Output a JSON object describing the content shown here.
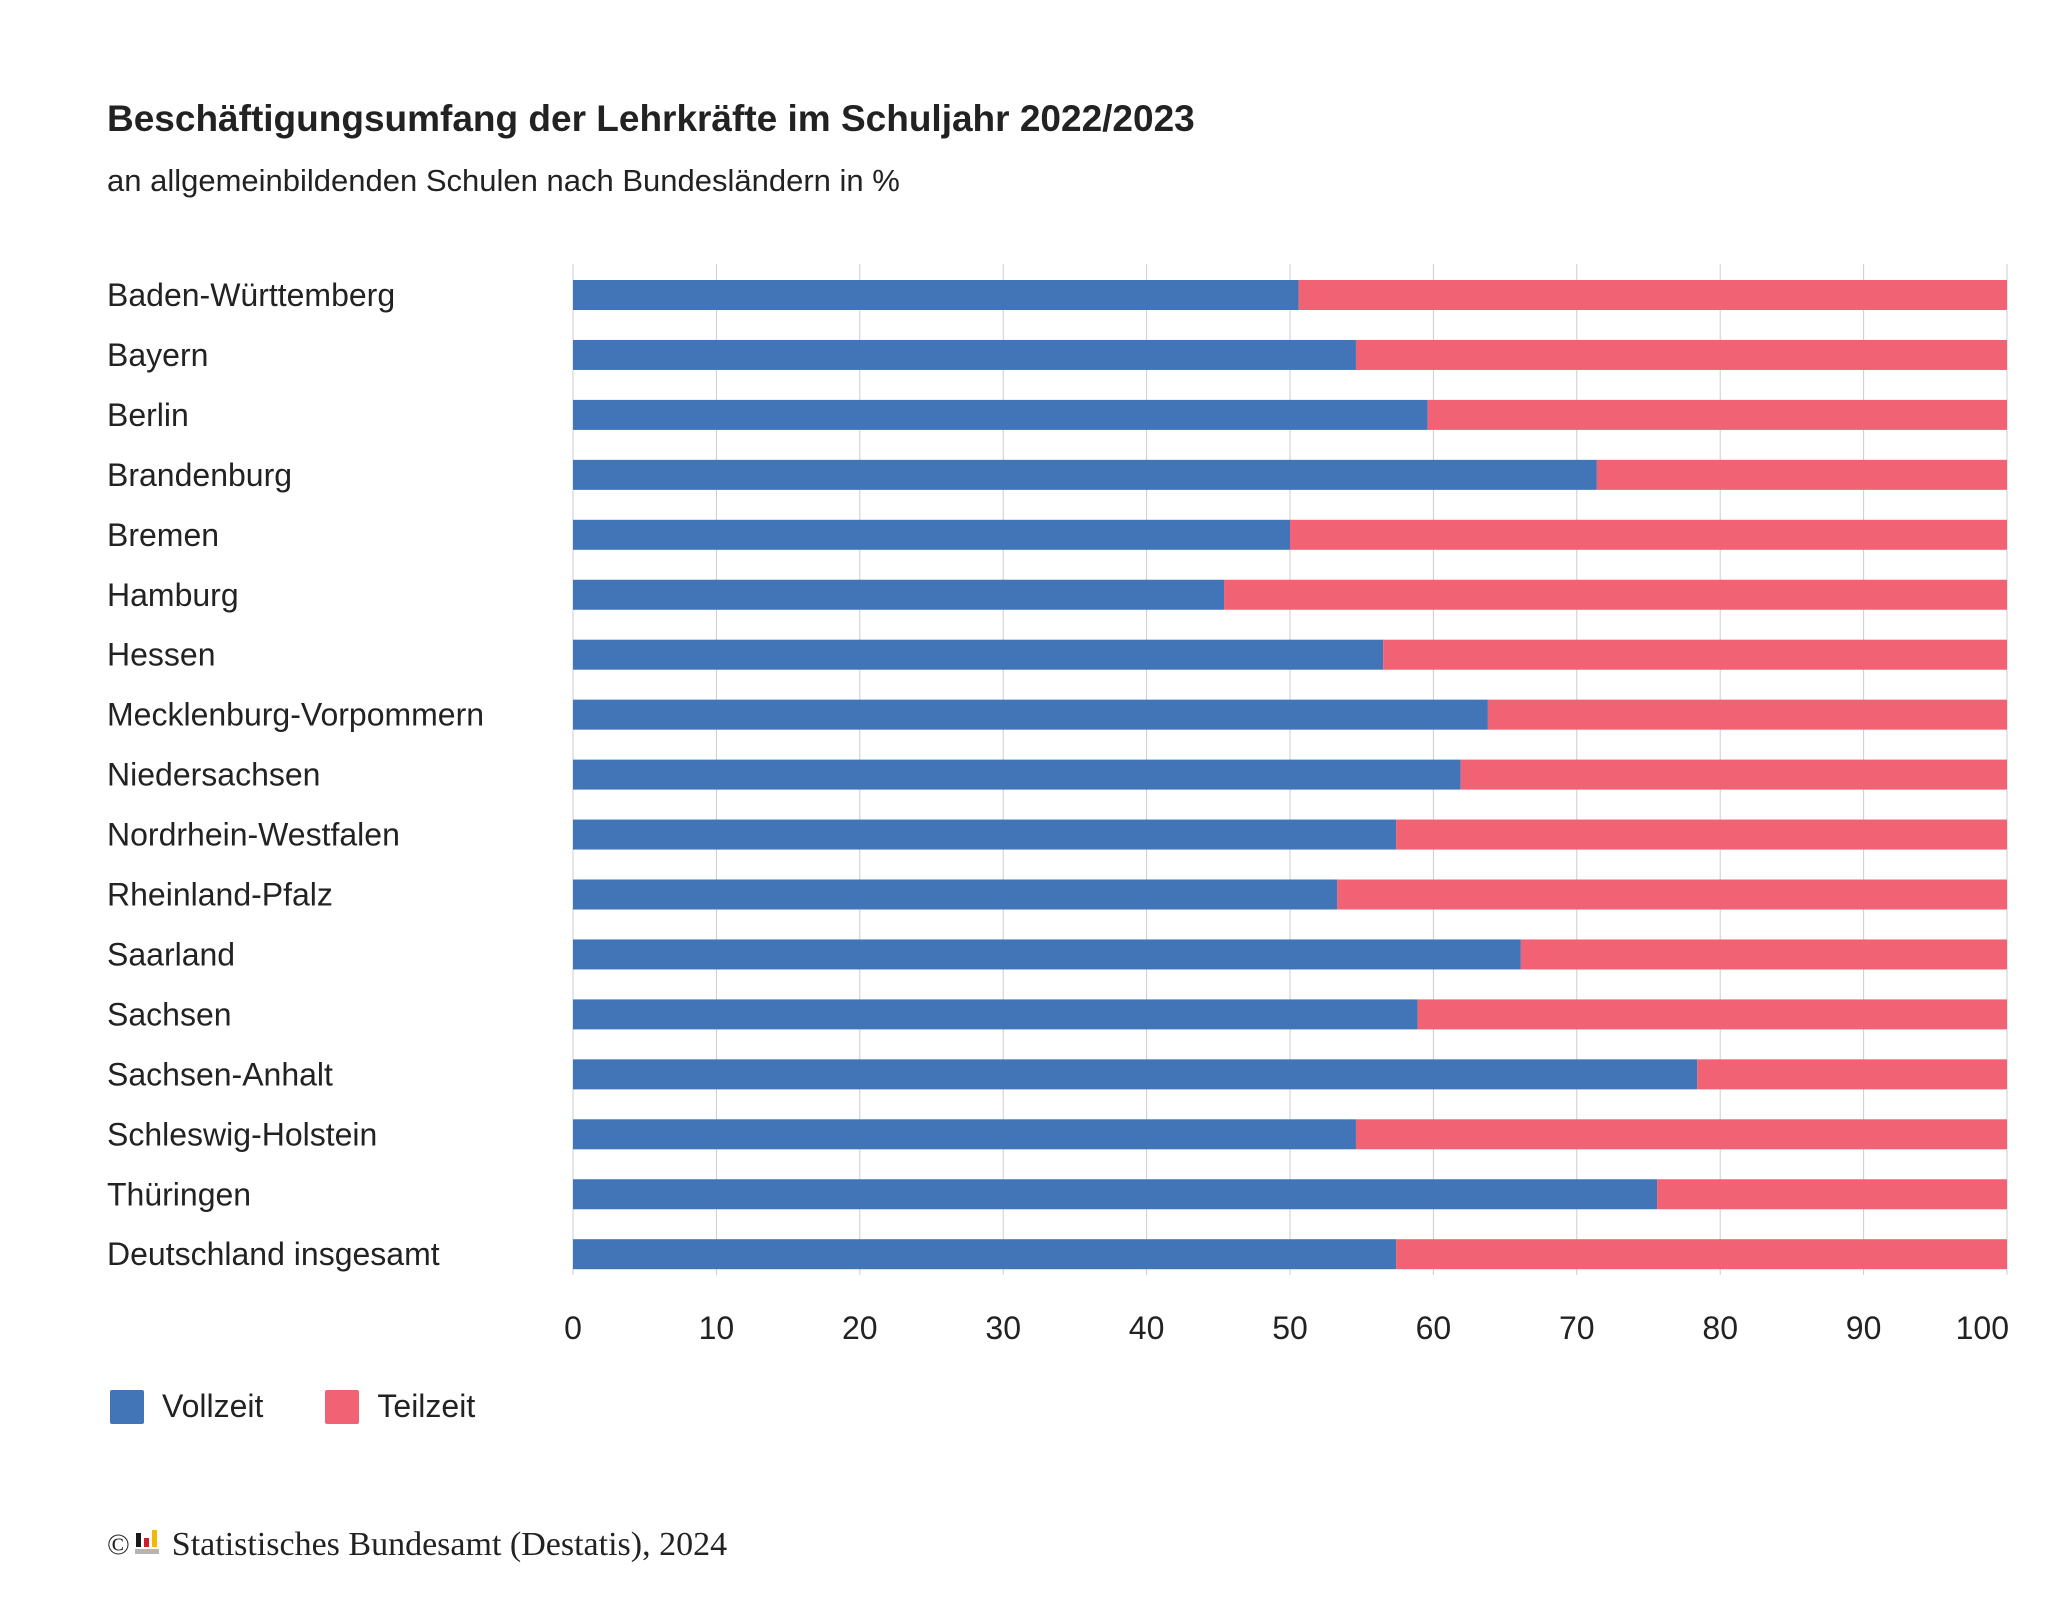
{
  "header": {
    "title": "Beschäftigungsumfang der Lehrkräfte im Schuljahr 2022/2023",
    "subtitle": "an allgemeinbildenden Schulen nach Bundesländern in %"
  },
  "chart_data": {
    "type": "bar",
    "orientation": "horizontal",
    "stacked": true,
    "title": "Beschäftigungsumfang der Lehrkräfte im Schuljahr 2022/2023",
    "subtitle": "an allgemeinbildenden Schulen nach Bundesländern in %",
    "xlabel": "",
    "ylabel": "",
    "xlim": [
      0,
      100
    ],
    "x_ticks": [
      0,
      10,
      20,
      30,
      40,
      50,
      60,
      70,
      80,
      90,
      100
    ],
    "grid": true,
    "legend_position": "bottom-left",
    "categories": [
      "Baden-Württemberg",
      "Bayern",
      "Berlin",
      "Brandenburg",
      "Bremen",
      "Hamburg",
      "Hessen",
      "Mecklenburg-Vorpommern",
      "Niedersachsen",
      "Nordrhein-Westfalen",
      "Rheinland-Pfalz",
      "Saarland",
      "Sachsen",
      "Sachsen-Anhalt",
      "Schleswig-Holstein",
      "Thüringen",
      "Deutschland insgesamt"
    ],
    "series": [
      {
        "name": "Vollzeit",
        "color": "#4275b8",
        "values": [
          50.6,
          54.6,
          59.6,
          71.4,
          50.0,
          45.4,
          56.5,
          63.8,
          61.9,
          57.4,
          53.3,
          66.1,
          58.9,
          78.4,
          54.6,
          75.6,
          57.4
        ]
      },
      {
        "name": "Teilzeit",
        "color": "#f16274",
        "values": [
          49.4,
          45.4,
          40.4,
          28.6,
          50.0,
          54.6,
          43.5,
          36.2,
          38.1,
          42.6,
          46.7,
          33.9,
          41.1,
          21.6,
          45.4,
          24.4,
          42.6
        ]
      }
    ]
  },
  "legend": {
    "items": [
      {
        "label": "Vollzeit",
        "color": "#4275b8"
      },
      {
        "label": "Teilzeit",
        "color": "#f16274"
      }
    ]
  },
  "footer": {
    "copyright_symbol": "©",
    "logo_icon": "destatis-logo-icon",
    "text": "Statistisches Bundesamt (Destatis), 2024"
  }
}
